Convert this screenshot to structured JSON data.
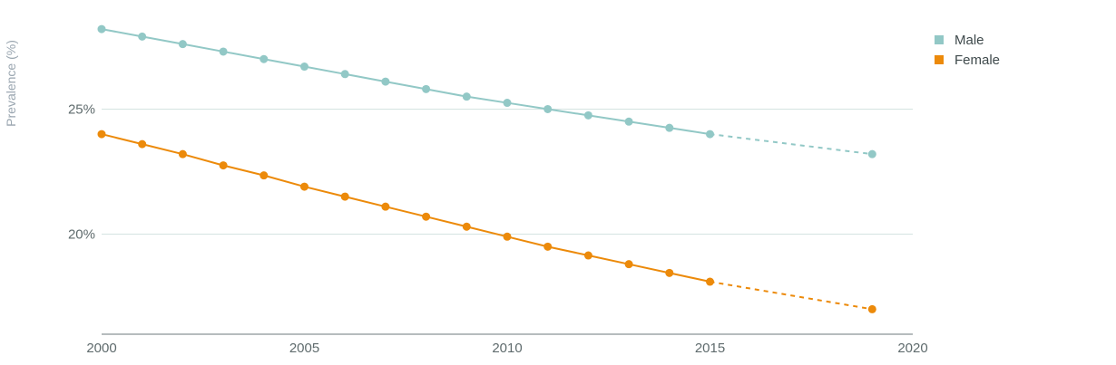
{
  "chart_data": {
    "type": "line",
    "ylabel": "Prevalence (%)",
    "xlim": [
      2000,
      2020
    ],
    "ylim": [
      16,
      29
    ],
    "x_ticks": [
      "2000",
      "2005",
      "2010",
      "2015",
      "2020"
    ],
    "y_ticks": [
      {
        "value": 20,
        "label": "20%"
      },
      {
        "value": 25,
        "label": "25%"
      }
    ],
    "grid": "horizontal",
    "legend_position": "top-right",
    "projection_from": 2015,
    "series": [
      {
        "name": "Male",
        "color": "#92c8c6",
        "points": [
          [
            2000,
            28.2
          ],
          [
            2001,
            27.9
          ],
          [
            2002,
            27.6
          ],
          [
            2003,
            27.3
          ],
          [
            2004,
            27.0
          ],
          [
            2005,
            26.7
          ],
          [
            2006,
            26.4
          ],
          [
            2007,
            26.1
          ],
          [
            2008,
            25.8
          ],
          [
            2009,
            25.5
          ],
          [
            2010,
            25.25
          ],
          [
            2011,
            25.0
          ],
          [
            2012,
            24.75
          ],
          [
            2013,
            24.5
          ],
          [
            2014,
            24.25
          ],
          [
            2015,
            24.0
          ],
          [
            2019,
            23.2
          ]
        ]
      },
      {
        "name": "Female",
        "color": "#ec8a0a",
        "points": [
          [
            2000,
            24.0
          ],
          [
            2001,
            23.6
          ],
          [
            2002,
            23.2
          ],
          [
            2003,
            22.75
          ],
          [
            2004,
            22.35
          ],
          [
            2005,
            21.9
          ],
          [
            2006,
            21.5
          ],
          [
            2007,
            21.1
          ],
          [
            2008,
            20.7
          ],
          [
            2009,
            20.3
          ],
          [
            2010,
            19.9
          ],
          [
            2011,
            19.5
          ],
          [
            2012,
            19.15
          ],
          [
            2013,
            18.8
          ],
          [
            2014,
            18.45
          ],
          [
            2015,
            18.1
          ],
          [
            2019,
            17.0
          ]
        ]
      }
    ]
  }
}
